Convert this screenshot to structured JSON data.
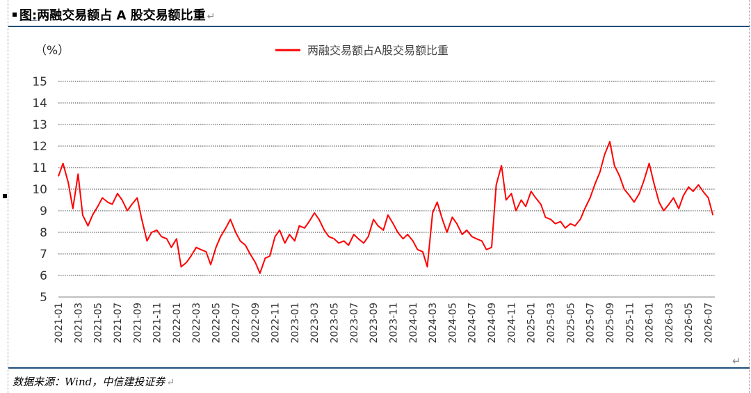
{
  "figure": {
    "title_prefix": "图:",
    "title": "两融交易额占 A 股交易额比重",
    "source": "数据来源：Wind，中信建投证券"
  },
  "chart_data": {
    "type": "line",
    "ylabel": "（%）",
    "ylim": [
      5,
      15
    ],
    "y_ticks": [
      "15",
      "14",
      "13",
      "12",
      "11",
      "10",
      "9",
      "8",
      "7",
      "6",
      "5"
    ],
    "x_ticks": [
      "2021-01",
      "2021-03",
      "2021-05",
      "2021-07",
      "2021-09",
      "2021-11",
      "2022-01",
      "2022-03",
      "2022-05",
      "2022-07",
      "2022-09",
      "2022-11",
      "2023-01",
      "2023-03",
      "2023-05",
      "2023-07",
      "2023-09",
      "2023-11",
      "2024-01",
      "2024-03",
      "2024-05",
      "2024-07",
      "2024-09",
      "2024-11",
      "2025-01",
      "2025-03",
      "2025-05",
      "2025-07",
      "2025-09",
      "2025-11",
      "2026-01",
      "2026-03",
      "2026-05",
      "2026-07"
    ],
    "grid": "horizontal",
    "legend_position": "top-center",
    "colors": {
      "series": "#ff0000",
      "grid": "#000000"
    },
    "series": [
      {
        "name": "两融交易额占A股交易额比重",
        "x": [
          "2021-01",
          "2021-01-15",
          "2021-02",
          "2021-02-15",
          "2021-03",
          "2021-03-15",
          "2021-04",
          "2021-04-15",
          "2021-05",
          "2021-05-15",
          "2021-06",
          "2021-06-15",
          "2021-07",
          "2021-07-15",
          "2021-08",
          "2021-08-15",
          "2021-09",
          "2021-09-15",
          "2021-10",
          "2021-10-15",
          "2021-11",
          "2021-11-15",
          "2021-12",
          "2021-12-15",
          "2022-01",
          "2022-01-15",
          "2022-02",
          "2022-02-15",
          "2022-03",
          "2022-03-15",
          "2022-04",
          "2022-04-15",
          "2022-05",
          "2022-05-15",
          "2022-06",
          "2022-06-15",
          "2022-07",
          "2022-07-15",
          "2022-08",
          "2022-08-15",
          "2022-09",
          "2022-09-15",
          "2022-10",
          "2022-10-15",
          "2022-11",
          "2022-11-15",
          "2022-12",
          "2022-12-15",
          "2023-01",
          "2023-01-15",
          "2023-02",
          "2023-02-15",
          "2023-03",
          "2023-03-15",
          "2023-04",
          "2023-04-15",
          "2023-05",
          "2023-05-15",
          "2023-06",
          "2023-06-15",
          "2023-07",
          "2023-07-15",
          "2023-08",
          "2023-08-15",
          "2023-09",
          "2023-09-15",
          "2023-10",
          "2023-10-15",
          "2023-11",
          "2023-11-15",
          "2023-12",
          "2023-12-15",
          "2024-01",
          "2024-01-15",
          "2024-02",
          "2024-02-15",
          "2024-03",
          "2024-03-15",
          "2024-04",
          "2024-04-15",
          "2024-05",
          "2024-05-15",
          "2024-06",
          "2024-06-15",
          "2024-07",
          "2024-07-15",
          "2024-08",
          "2024-08-15",
          "2024-09",
          "2024-09-15",
          "2024-10",
          "2024-10-15",
          "2024-11",
          "2024-11-15",
          "2024-12",
          "2024-12-15",
          "2025-01",
          "2025-01-15",
          "2025-02",
          "2025-02-15",
          "2025-03",
          "2025-03-15",
          "2025-04",
          "2025-04-15",
          "2025-05",
          "2025-05-15",
          "2025-06",
          "2025-06-15",
          "2025-07",
          "2025-07-15",
          "2025-08",
          "2025-08-15",
          "2025-09",
          "2025-09-15",
          "2025-10",
          "2025-10-15",
          "2025-11",
          "2025-11-15",
          "2025-12",
          "2025-12-15",
          "2026-01",
          "2026-01-15",
          "2026-02",
          "2026-02-15",
          "2026-03",
          "2026-03-15",
          "2026-04",
          "2026-04-15",
          "2026-05",
          "2026-05-15",
          "2026-06",
          "2026-06-15",
          "2026-07",
          "2026-07-15"
        ],
        "values": [
          10.6,
          11.2,
          10.3,
          9.1,
          10.7,
          8.8,
          8.3,
          8.8,
          9.2,
          9.6,
          9.4,
          9.3,
          9.8,
          9.5,
          9.0,
          9.3,
          9.6,
          8.6,
          7.6,
          8.0,
          8.1,
          7.8,
          7.7,
          7.3,
          7.7,
          6.4,
          6.6,
          6.9,
          7.3,
          7.2,
          7.1,
          6.5,
          7.3,
          7.8,
          8.2,
          8.6,
          8.0,
          7.6,
          7.4,
          7.0,
          6.6,
          6.1,
          6.8,
          6.9,
          7.8,
          8.1,
          7.5,
          7.9,
          7.6,
          8.3,
          8.2,
          8.5,
          8.9,
          8.6,
          8.1,
          7.8,
          7.7,
          7.5,
          7.6,
          7.4,
          7.9,
          7.7,
          7.5,
          7.8,
          8.6,
          8.3,
          8.1,
          8.8,
          8.4,
          8.0,
          7.7,
          7.9,
          7.6,
          7.2,
          7.1,
          6.4,
          8.9,
          9.4,
          8.6,
          8.0,
          8.7,
          8.4,
          7.9,
          8.1,
          7.8,
          7.7,
          7.6,
          7.2,
          7.3,
          10.2,
          11.1,
          9.5,
          9.8,
          9.0,
          9.5,
          9.2,
          9.9,
          9.6,
          9.3,
          8.7,
          8.6,
          8.4,
          8.5,
          8.2,
          8.4,
          8.3,
          8.6,
          9.1,
          9.6,
          10.2,
          10.8,
          11.6,
          12.2,
          11.1,
          10.6,
          10.0,
          9.7,
          9.4,
          9.8,
          10.4,
          11.2,
          10.3,
          9.4,
          9.0,
          9.3,
          9.6,
          9.1,
          9.7,
          10.1,
          9.9,
          10.2,
          9.9,
          9.6,
          8.8
        ]
      }
    ]
  }
}
